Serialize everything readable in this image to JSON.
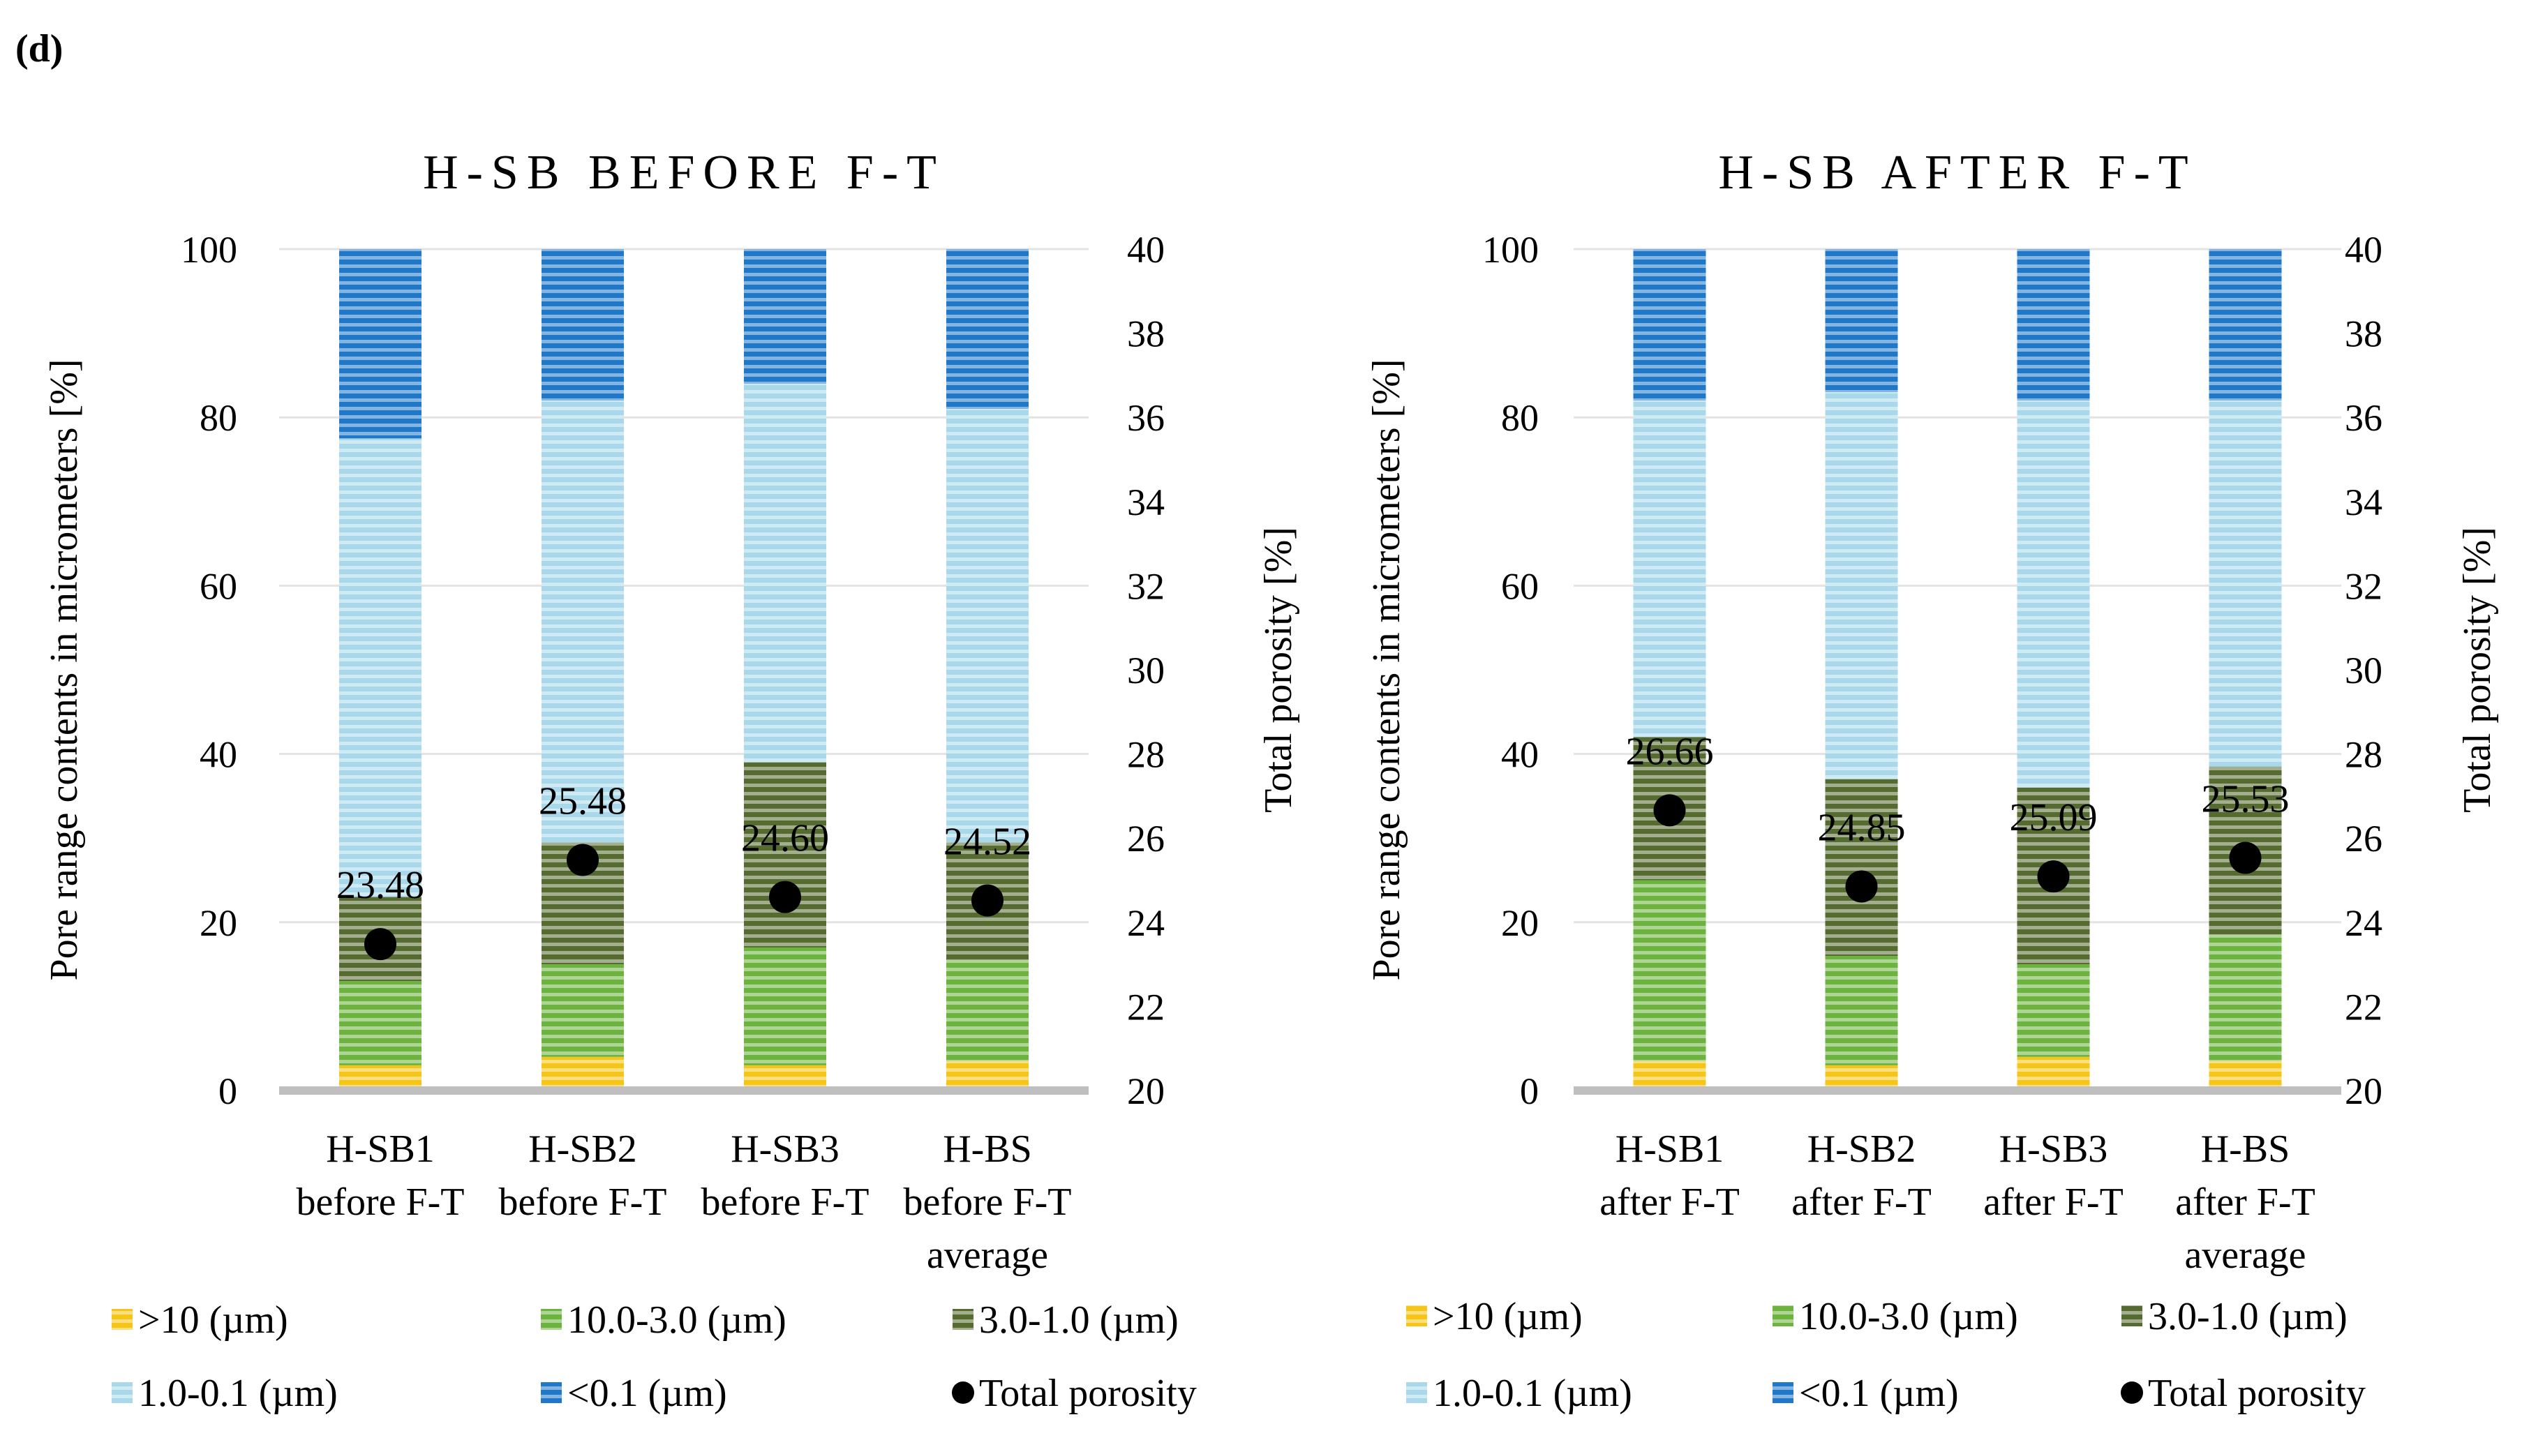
{
  "panel_label": "(d)",
  "colors": {
    "gt10": "#F5C518",
    "r10_3": "#6DB33F",
    "r3_1": "#556B2F",
    "r1_01": "#A8D8EA",
    "lt01": "#1F78C8",
    "porosity": "#000000",
    "axis": "#BFBFBF",
    "grid": "#E3E3E3"
  },
  "chart_data": [
    {
      "type": "bar",
      "stacked": true,
      "title": "H-SB BEFORE F-T",
      "ylabel": "Pore range contents in micrometers  [%]",
      "y2label": "Total porosity [%]",
      "ylim": [
        0,
        100
      ],
      "yticks": [
        "0",
        "20",
        "40",
        "60",
        "80",
        "100"
      ],
      "y2lim": [
        20,
        40
      ],
      "y2ticks": [
        "20",
        "22",
        "24",
        "26",
        "28",
        "30",
        "32",
        "34",
        "36",
        "38",
        "40"
      ],
      "categories": [
        [
          "H-SB1",
          "before F-T"
        ],
        [
          "H-SB2",
          "before F-T"
        ],
        [
          "H-SB3",
          "before F-T"
        ],
        [
          "H-BS",
          "before F-T",
          "average"
        ]
      ],
      "series": [
        {
          "name": ">10 (µm)",
          "key": "gt10",
          "values": [
            3,
            4,
            3,
            3.5
          ]
        },
        {
          "name": "10.0-3.0 (µm)",
          "key": "r10_3",
          "values": [
            10,
            11,
            14,
            12
          ]
        },
        {
          "name": "3.0-1.0 (µm)",
          "key": "r3_1",
          "values": [
            10,
            14.5,
            22,
            14
          ]
        },
        {
          "name": "1.0-0.1 (µm)",
          "key": "r1_01",
          "values": [
            54.5,
            52.5,
            45,
            51.5
          ]
        },
        {
          "name": "<0.1 (µm)",
          "key": "lt01",
          "values": [
            22.5,
            18,
            16,
            19
          ]
        }
      ],
      "porosity": {
        "name": "Total porosity",
        "values": [
          23.48,
          25.48,
          24.6,
          24.52
        ]
      },
      "porosity_labels": [
        "23.48",
        "25.48",
        "24.60",
        "24.52"
      ],
      "legend": [
        ">10 (µm)",
        "10.0-3.0 (µm)",
        "3.0-1.0 (µm)",
        "1.0-0.1 (µm)",
        "<0.1 (µm)",
        "Total porosity"
      ]
    },
    {
      "type": "bar",
      "stacked": true,
      "title": "H-SB AFTER F-T",
      "ylabel": "Pore range contents in micrometers  [%]",
      "y2label": "Total porosity [%]",
      "ylim": [
        0,
        100
      ],
      "yticks": [
        "0",
        "20",
        "40",
        "60",
        "80",
        "100"
      ],
      "y2lim": [
        20,
        40
      ],
      "y2ticks": [
        "20",
        "22",
        "24",
        "26",
        "28",
        "30",
        "32",
        "34",
        "36",
        "38",
        "40"
      ],
      "categories": [
        [
          "H-SB1",
          "after F-T"
        ],
        [
          "H-SB2",
          "after F-T"
        ],
        [
          "H-SB3",
          "after F-T"
        ],
        [
          "H-BS",
          "after F-T",
          "average"
        ]
      ],
      "series": [
        {
          "name": ">10 (µm)",
          "key": "gt10",
          "values": [
            3.5,
            3,
            4,
            3.5
          ]
        },
        {
          "name": "10.0-3.0 (µm)",
          "key": "r10_3",
          "values": [
            21.5,
            13,
            11,
            15
          ]
        },
        {
          "name": "3.0-1.0 (µm)",
          "key": "r3_1",
          "values": [
            17,
            21,
            21,
            20
          ]
        },
        {
          "name": "1.0-0.1 (µm)",
          "key": "r1_01",
          "values": [
            40,
            46,
            46,
            43.5
          ]
        },
        {
          "name": "<0.1 (µm)",
          "key": "lt01",
          "values": [
            18,
            17,
            18,
            18
          ]
        }
      ],
      "porosity": {
        "name": "Total porosity",
        "values": [
          26.66,
          24.85,
          25.09,
          25.53
        ]
      },
      "porosity_labels": [
        "26.66",
        "24.85",
        "25.09",
        "25.53"
      ],
      "legend": [
        ">10 (µm)",
        "10.0-3.0 (µm)",
        "3.0-1.0 (µm)",
        "1.0-0.1 (µm)",
        "<0.1 (µm)",
        "Total porosity"
      ]
    }
  ]
}
